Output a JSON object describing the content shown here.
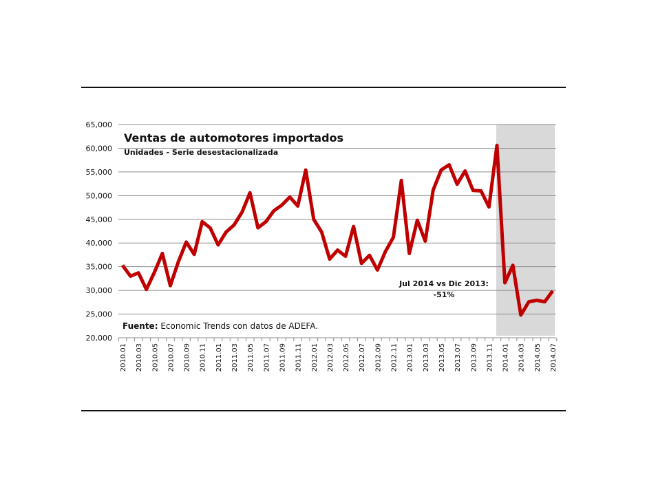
{
  "chart_data": {
    "type": "line",
    "title": "Ventas de automotores importados",
    "subtitle": "Unidades - Serie desestacionalizada",
    "source_label": "Fuente:",
    "source_text": "Economic Trends con datos de ADEFA.",
    "annotation_line1": "Jul 2014 vs Dic 2013:",
    "annotation_line2": "-51%",
    "ylim": [
      20000,
      65000
    ],
    "yticks": [
      "20,000",
      "25,000",
      "30,000",
      "35,000",
      "40,000",
      "45,000",
      "50,000",
      "55,000",
      "60,000",
      "65,000"
    ],
    "grid": true,
    "line_color": "#c00000",
    "shade_color": "#d9d9d9",
    "shaded_from": "2013.12",
    "x": [
      "2010.01",
      "2010.02",
      "2010.03",
      "2010.04",
      "2010.05",
      "2010.06",
      "2010.07",
      "2010.08",
      "2010.09",
      "2010.10",
      "2010.11",
      "2010.12",
      "2011.01",
      "2011.02",
      "2011.03",
      "2011.04",
      "2011.05",
      "2011.06",
      "2011.07",
      "2011.08",
      "2011.09",
      "2011.10",
      "2011.11",
      "2011.12",
      "2012.01",
      "2012.02",
      "2012.03",
      "2012.04",
      "2012.05",
      "2012.06",
      "2012.07",
      "2012.08",
      "2012.09",
      "2012.10",
      "2012.11",
      "2012.12",
      "2013.01",
      "2013.02",
      "2013.03",
      "2013.04",
      "2013.05",
      "2013.06",
      "2013.07",
      "2013.08",
      "2013.09",
      "2013.10",
      "2013.11",
      "2013.12",
      "2014.01",
      "2014.02",
      "2014.03",
      "2014.04",
      "2014.05",
      "2014.06",
      "2014.07"
    ],
    "xtick_labels": [
      "2010.01",
      "2010.03",
      "2010.05",
      "2010.07",
      "2010.09",
      "2010.11",
      "2011.01",
      "2011.03",
      "2011.05",
      "2011.07",
      "2011.09",
      "2011.11",
      "2012.01",
      "2012.03",
      "2012.05",
      "2012.07",
      "2012.09",
      "2012.11",
      "2013.01",
      "2013.03",
      "2013.05",
      "2013.07",
      "2013.09",
      "2013.11",
      "2014.01",
      "2014.03",
      "2014.05",
      "2014.07"
    ],
    "values": [
      35300,
      33000,
      33700,
      30200,
      33800,
      37800,
      31000,
      36000,
      40200,
      37600,
      44500,
      43200,
      39600,
      42300,
      43800,
      46500,
      50600,
      43200,
      44500,
      46800,
      48000,
      49700,
      47800,
      55400,
      45000,
      42300,
      36600,
      38500,
      37200,
      43500,
      35700,
      37400,
      34300,
      38200,
      41200,
      53200,
      37800,
      44800,
      40400,
      51200,
      55400,
      56500,
      52400,
      55200,
      51100,
      51000,
      47600,
      60600,
      31600,
      35300,
      24800,
      27600,
      27900,
      27600,
      29900
    ]
  }
}
